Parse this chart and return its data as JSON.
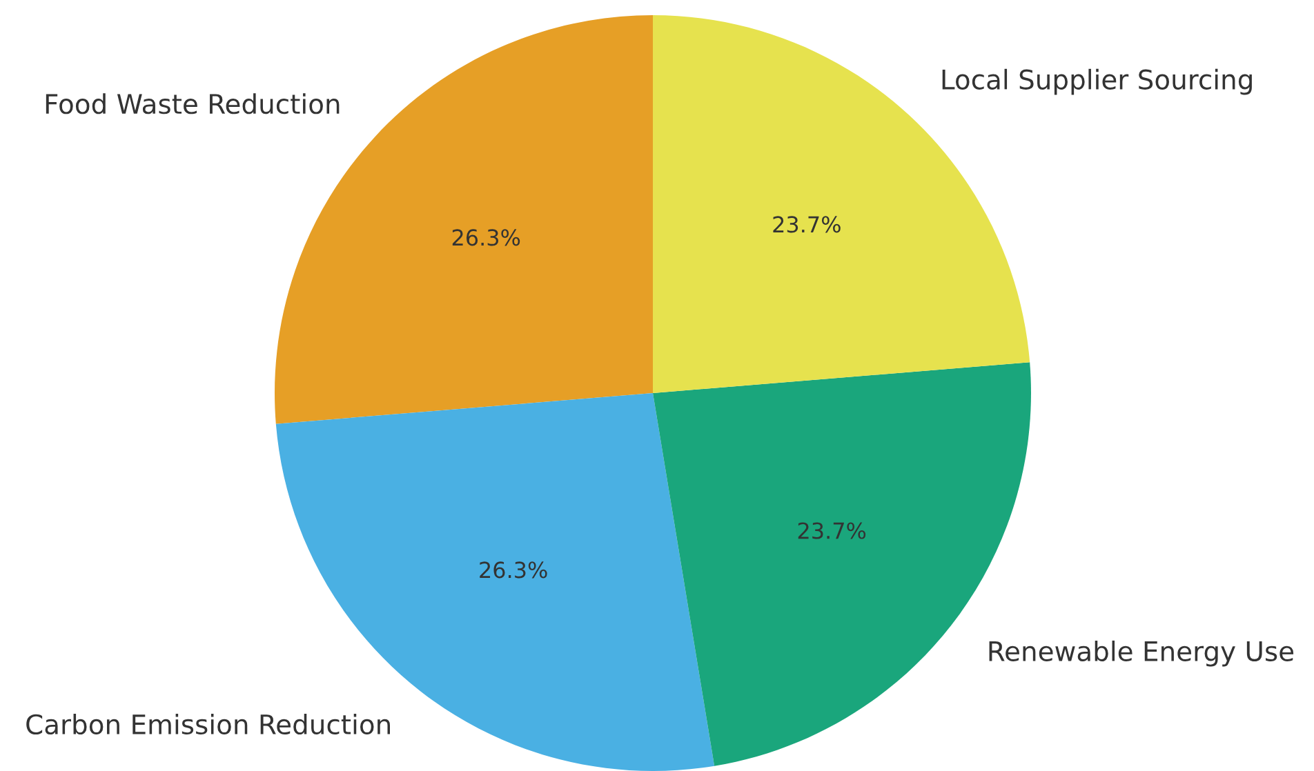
{
  "chart_data": {
    "type": "pie",
    "categories": [
      "Food Waste Reduction",
      "Carbon Emission Reduction",
      "Renewable Energy Use",
      "Local Supplier Sourcing"
    ],
    "values": [
      26.3,
      26.3,
      23.7,
      23.7
    ],
    "value_labels": [
      "26.3%",
      "26.3%",
      "23.7%",
      "23.7%"
    ],
    "colors": [
      "#e69f26",
      "#4ab0e3",
      "#1aa67c",
      "#e6e24e"
    ]
  }
}
